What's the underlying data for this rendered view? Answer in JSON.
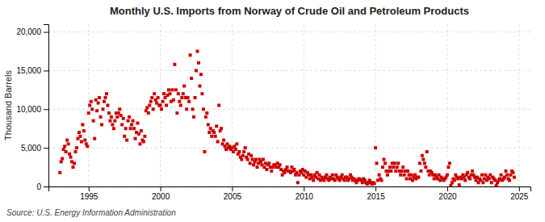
{
  "chart_data": {
    "type": "scatter",
    "title": "Monthly U.S. Imports from Norway of Crude Oil and Petroleum Products",
    "ylabel": "Thousand Barrels",
    "annotations": [
      "Source: U.S. Energy Information Administration"
    ],
    "color": "#cc0000",
    "marker": "square",
    "grid": true,
    "xlim": [
      1992.2,
      2025.8
    ],
    "xticks": [
      1995,
      2000,
      2005,
      2010,
      2015,
      2020,
      2025
    ],
    "ylim": [
      0,
      21000
    ],
    "yticks": [
      0,
      {
        "value": 5000,
        "label": "5,000"
      },
      {
        "value": 10000,
        "label": "10,000"
      },
      {
        "value": 15000,
        "label": "15,000"
      },
      {
        "value": 20000,
        "label": "20,000"
      }
    ],
    "x": [
      1993.0,
      1993.083,
      1993.167,
      1993.25,
      1993.333,
      1993.417,
      1993.5,
      1993.583,
      1993.667,
      1993.75,
      1993.833,
      1993.917,
      1994.0,
      1994.083,
      1994.167,
      1994.25,
      1994.333,
      1994.417,
      1994.5,
      1994.583,
      1994.667,
      1994.75,
      1994.833,
      1994.917,
      1995.0,
      1995.083,
      1995.167,
      1995.25,
      1995.333,
      1995.417,
      1995.5,
      1995.583,
      1995.667,
      1995.75,
      1995.833,
      1995.917,
      1996.0,
      1996.083,
      1996.167,
      1996.25,
      1996.333,
      1996.417,
      1996.5,
      1996.583,
      1996.667,
      1996.75,
      1996.833,
      1996.917,
      1997.0,
      1997.083,
      1997.167,
      1997.25,
      1997.333,
      1997.417,
      1997.5,
      1997.583,
      1997.667,
      1997.75,
      1997.833,
      1997.917,
      1998.0,
      1998.083,
      1998.167,
      1998.25,
      1998.333,
      1998.417,
      1998.5,
      1998.583,
      1998.667,
      1998.75,
      1998.833,
      1998.917,
      1999.0,
      1999.083,
      1999.167,
      1999.25,
      1999.333,
      1999.417,
      1999.5,
      1999.583,
      1999.667,
      1999.75,
      1999.833,
      1999.917,
      2000.0,
      2000.083,
      2000.167,
      2000.25,
      2000.333,
      2000.417,
      2000.5,
      2000.583,
      2000.667,
      2000.75,
      2000.833,
      2000.917,
      2001.0,
      2001.083,
      2001.167,
      2001.25,
      2001.333,
      2001.417,
      2001.5,
      2001.583,
      2001.667,
      2001.75,
      2001.833,
      2001.917,
      2002.0,
      2002.083,
      2002.167,
      2002.25,
      2002.333,
      2002.417,
      2002.5,
      2002.583,
      2002.667,
      2002.75,
      2002.833,
      2002.917,
      2003.0,
      2003.083,
      2003.167,
      2003.25,
      2003.333,
      2003.417,
      2003.5,
      2003.583,
      2003.667,
      2003.75,
      2003.833,
      2003.917,
      2004.0,
      2004.083,
      2004.167,
      2004.25,
      2004.333,
      2004.417,
      2004.5,
      2004.583,
      2004.667,
      2004.75,
      2004.833,
      2004.917,
      2005.0,
      2005.083,
      2005.167,
      2005.25,
      2005.333,
      2005.417,
      2005.5,
      2005.583,
      2005.667,
      2005.75,
      2005.833,
      2005.917,
      2006.0,
      2006.083,
      2006.167,
      2006.25,
      2006.333,
      2006.417,
      2006.5,
      2006.583,
      2006.667,
      2006.75,
      2006.833,
      2006.917,
      2007.0,
      2007.083,
      2007.167,
      2007.25,
      2007.333,
      2007.417,
      2007.5,
      2007.583,
      2007.667,
      2007.75,
      2007.833,
      2007.917,
      2008.0,
      2008.083,
      2008.167,
      2008.25,
      2008.333,
      2008.417,
      2008.5,
      2008.583,
      2008.667,
      2008.75,
      2008.833,
      2008.917,
      2009.0,
      2009.083,
      2009.167,
      2009.25,
      2009.333,
      2009.417,
      2009.5,
      2009.583,
      2009.667,
      2009.75,
      2009.833,
      2009.917,
      2010.0,
      2010.083,
      2010.167,
      2010.25,
      2010.333,
      2010.417,
      2010.5,
      2010.583,
      2010.667,
      2010.75,
      2010.833,
      2010.917,
      2011.0,
      2011.083,
      2011.167,
      2011.25,
      2011.333,
      2011.417,
      2011.5,
      2011.583,
      2011.667,
      2011.75,
      2011.833,
      2011.917,
      2012.0,
      2012.083,
      2012.167,
      2012.25,
      2012.333,
      2012.417,
      2012.5,
      2012.583,
      2012.667,
      2012.75,
      2012.833,
      2012.917,
      2013.0,
      2013.083,
      2013.167,
      2013.25,
      2013.333,
      2013.417,
      2013.5,
      2013.583,
      2013.667,
      2013.75,
      2013.833,
      2013.917,
      2014.0,
      2014.083,
      2014.167,
      2014.25,
      2014.333,
      2014.417,
      2014.5,
      2014.583,
      2014.667,
      2014.75,
      2014.833,
      2014.917,
      2015.0,
      2015.083,
      2015.167,
      2015.25,
      2015.333,
      2015.417,
      2015.5,
      2015.583,
      2015.667,
      2015.75,
      2015.833,
      2015.917,
      2016.0,
      2016.083,
      2016.167,
      2016.25,
      2016.333,
      2016.417,
      2016.5,
      2016.583,
      2016.667,
      2016.75,
      2016.833,
      2016.917,
      2017.0,
      2017.083,
      2017.167,
      2017.25,
      2017.333,
      2017.417,
      2017.5,
      2017.583,
      2017.667,
      2017.75,
      2017.833,
      2017.917,
      2018.0,
      2018.083,
      2018.167,
      2018.25,
      2018.333,
      2018.417,
      2018.5,
      2018.583,
      2018.667,
      2018.75,
      2018.833,
      2018.917,
      2019.0,
      2019.083,
      2019.167,
      2019.25,
      2019.333,
      2019.417,
      2019.5,
      2019.583,
      2019.667,
      2019.75,
      2019.833,
      2019.917,
      2020.0,
      2020.083,
      2020.167,
      2020.25,
      2020.333,
      2020.417,
      2020.5,
      2020.583,
      2020.667,
      2020.75,
      2020.833,
      2020.917,
      2021.0,
      2021.083,
      2021.167,
      2021.25,
      2021.333,
      2021.417,
      2021.5,
      2021.583,
      2021.667,
      2021.75,
      2021.833,
      2021.917,
      2022.0,
      2022.083,
      2022.167,
      2022.25,
      2022.333,
      2022.417,
      2022.5,
      2022.583,
      2022.667,
      2022.75,
      2022.833,
      2022.917,
      2023.0,
      2023.083,
      2023.167,
      2023.25,
      2023.333,
      2023.417,
      2023.5,
      2023.583,
      2023.667,
      2023.75,
      2023.833,
      2023.917,
      2024.0,
      2024.083,
      2024.167,
      2024.25,
      2024.333,
      2024.417,
      2024.5,
      2024.583,
      2024.667
    ],
    "values": [
      1800,
      3200,
      3600,
      4800,
      5200,
      4500,
      6000,
      5500,
      4200,
      3800,
      3200,
      2500,
      3000,
      4500,
      5000,
      6200,
      7000,
      6500,
      5800,
      8000,
      7200,
      6000,
      5500,
      5200,
      9500,
      10500,
      11000,
      10000,
      8500,
      6200,
      11200,
      9800,
      10800,
      11500,
      9000,
      8000,
      10000,
      11000,
      11500,
      12000,
      10500,
      9500,
      8500,
      9000,
      8000,
      7500,
      8500,
      9500,
      9000,
      9500,
      10000,
      9200,
      8000,
      8800,
      6500,
      7500,
      6000,
      8500,
      9000,
      7500,
      8000,
      8500,
      7500,
      6200,
      7000,
      8200,
      6800,
      5500,
      7200,
      6000,
      5800,
      6500,
      9800,
      10200,
      9500,
      10500,
      11000,
      11500,
      10000,
      12000,
      11200,
      10800,
      11500,
      10500,
      10500,
      10000,
      11000,
      12000,
      11500,
      10500,
      11800,
      12500,
      12000,
      11000,
      12500,
      11200,
      15800,
      12500,
      9500,
      12000,
      11000,
      10500,
      11500,
      12000,
      13000,
      11500,
      10000,
      11500,
      11000,
      17000,
      14000,
      10000,
      9000,
      11500,
      15000,
      17500,
      16000,
      13000,
      14500,
      12000,
      10000,
      4500,
      9000,
      9500,
      8000,
      7000,
      7500,
      6500,
      7200,
      7000,
      6500,
      7800,
      5800,
      10500,
      7200,
      7500,
      5500,
      6000,
      5200,
      4800,
      5500,
      5000,
      5200,
      4800,
      5000,
      4500,
      5200,
      4800,
      5500,
      4200,
      4500,
      3800,
      3500,
      4000,
      4500,
      5000,
      3800,
      3500,
      4200,
      3000,
      4000,
      3500,
      2800,
      3200,
      3500,
      2500,
      3000,
      3500,
      3200,
      2800,
      3500,
      2500,
      3000,
      2200,
      2800,
      3000,
      2500,
      2000,
      2500,
      2800,
      2800,
      2500,
      3000,
      2500,
      2800,
      2200,
      1500,
      2000,
      1800,
      2200,
      2500,
      2000,
      2000,
      1800,
      2500,
      2000,
      2200,
      1500,
      1800,
      500,
      1500,
      2000,
      1800,
      2200,
      1500,
      2000,
      1200,
      1800,
      1500,
      1000,
      1500,
      1200,
      800,
      1500,
      1200,
      1800,
      1000,
      1500,
      800,
      1200,
      1000,
      800,
      1200,
      1500,
      1000,
      800,
      1200,
      1000,
      1500,
      1000,
      800,
      1500,
      1200,
      1000,
      800,
      1200,
      1500,
      1000,
      800,
      1200,
      1200,
      800,
      1000,
      1500,
      1200,
      800,
      1000,
      800,
      500,
      800,
      1000,
      900,
      800,
      500,
      1000,
      800,
      500,
      300,
      500,
      800,
      500,
      300,
      500,
      400,
      5000,
      3000,
      800,
      1500,
      1000,
      800,
      2500,
      3500,
      3000,
      2000,
      1500,
      2000,
      2500,
      2000,
      3000,
      2500,
      3000,
      2000,
      2500,
      3000,
      2000,
      1500,
      2000,
      2500,
      1500,
      2000,
      1000,
      2000,
      1500,
      1000,
      1500,
      800,
      1200,
      1500,
      1000,
      1200,
      1200,
      3000,
      2000,
      4000,
      3500,
      3000,
      2500,
      4500,
      2000,
      1500,
      2000,
      1800,
      1500,
      1000,
      1500,
      1200,
      1000,
      1500,
      800,
      1200,
      1000,
      800,
      1000,
      1200,
      1500,
      2500,
      3000,
      100,
      500,
      1000,
      800,
      1500,
      1200,
      1000,
      200,
      1200,
      1000,
      1500,
      1200,
      800,
      1500,
      1800,
      1200,
      1000,
      1500,
      2000,
      1500,
      1200,
      800,
      1200,
      500,
      1000,
      800,
      1500,
      500,
      1000,
      1500,
      800,
      1200,
      1000,
      1500,
      500,
      1200,
      1000,
      800,
      100,
      500,
      800,
      1000,
      1500,
      800,
      1000,
      1200,
      2000,
      1500,
      1000,
      800,
      1500,
      2000,
      1800,
      1200
    ]
  }
}
